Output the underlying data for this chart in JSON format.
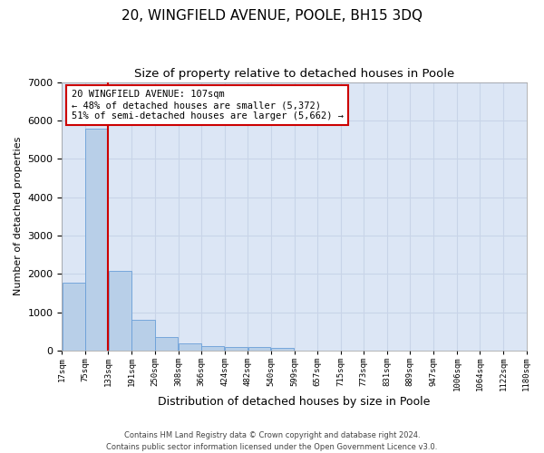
{
  "title": "20, WINGFIELD AVENUE, POOLE, BH15 3DQ",
  "subtitle": "Size of property relative to detached houses in Poole",
  "xlabel": "Distribution of detached houses by size in Poole",
  "ylabel": "Number of detached properties",
  "bar_color": "#b8cfe8",
  "bar_edge_color": "#6a9fd8",
  "vline_color": "#cc0000",
  "vline_x_bin_index": 1,
  "annotation_line1": "20 WINGFIELD AVENUE: 107sqm",
  "annotation_line2": "← 48% of detached houses are smaller (5,372)",
  "annotation_line3": "51% of semi-detached houses are larger (5,662) →",
  "annotation_box_color": "#cc0000",
  "bins": [
    17,
    75,
    133,
    191,
    250,
    308,
    366,
    424,
    482,
    540,
    599,
    657,
    715,
    773,
    831,
    889,
    947,
    1006,
    1064,
    1122,
    1180
  ],
  "counts": [
    1770,
    5780,
    2080,
    800,
    340,
    190,
    110,
    100,
    90,
    70,
    0,
    0,
    0,
    0,
    0,
    0,
    0,
    0,
    0,
    0
  ],
  "tick_labels": [
    "17sqm",
    "75sqm",
    "133sqm",
    "191sqm",
    "250sqm",
    "308sqm",
    "366sqm",
    "424sqm",
    "482sqm",
    "540sqm",
    "599sqm",
    "657sqm",
    "715sqm",
    "773sqm",
    "831sqm",
    "889sqm",
    "947sqm",
    "1006sqm",
    "1064sqm",
    "1122sqm",
    "1180sqm"
  ],
  "ylim": [
    0,
    7000
  ],
  "yticks": [
    0,
    1000,
    2000,
    3000,
    4000,
    5000,
    6000,
    7000
  ],
  "grid_color": "#c8d4e8",
  "background_color": "#dce6f5",
  "footer_text": "Contains HM Land Registry data © Crown copyright and database right 2024.\nContains public sector information licensed under the Open Government Licence v3.0.",
  "title_fontsize": 11,
  "subtitle_fontsize": 9.5,
  "tick_fontsize": 6.5,
  "ylabel_fontsize": 8,
  "xlabel_fontsize": 9,
  "annotation_fontsize": 7.5,
  "footer_fontsize": 6
}
